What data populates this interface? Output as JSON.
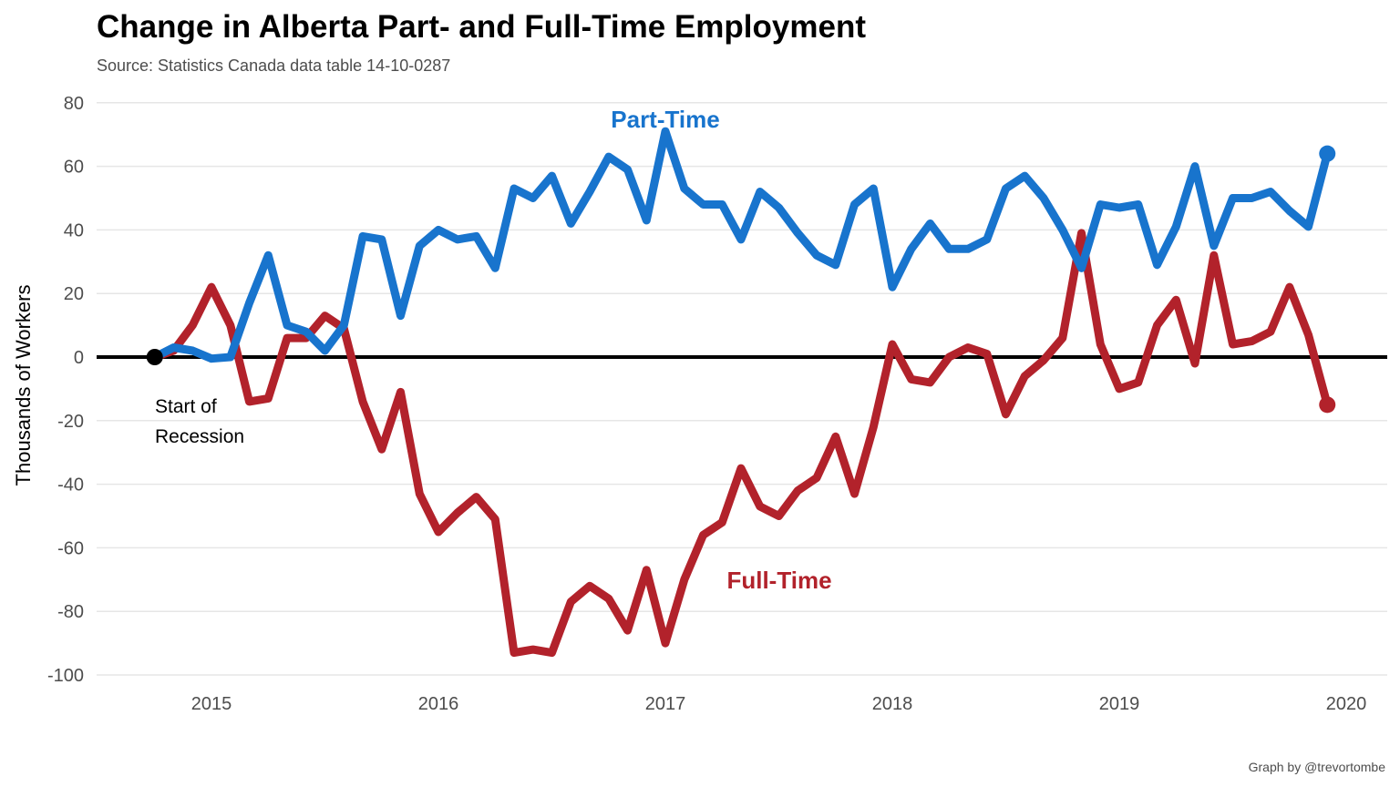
{
  "title": "Change in Alberta Part- and Full-Time Employment",
  "subtitle": "Source: Statistics Canada data table 14-10-0287",
  "caption": "Graph by @trevortombe",
  "annotations": {
    "start_line1": "Start of",
    "start_line2": "Recession"
  },
  "colors": {
    "part_time": "#1874cd",
    "full_time": "#b2222b",
    "zero_line": "#000000",
    "grid": "#e6e6e6"
  },
  "chart_data": {
    "type": "line",
    "ylabel": "Thousands of Workers",
    "xlabel": "",
    "ylim": [
      -100,
      80
    ],
    "yticks": [
      80,
      60,
      40,
      20,
      0,
      -20,
      -40,
      -60,
      -80,
      -100
    ],
    "xticks": [
      "2015",
      "2016",
      "2017",
      "2018",
      "2019",
      "2020"
    ],
    "x_start": "2014-10",
    "x_end": "2019-12",
    "grid": true,
    "legend": "none",
    "series": [
      {
        "name": "Part-Time",
        "values": [
          0,
          3,
          2,
          -0.5,
          0,
          17,
          32,
          10,
          8,
          2,
          10,
          38,
          37,
          13,
          35,
          40,
          37,
          38,
          28,
          53,
          50,
          57,
          42,
          52,
          63,
          59,
          43,
          71,
          53,
          48,
          48,
          37,
          52,
          47,
          39,
          32,
          29,
          48,
          53,
          22,
          34,
          42,
          34,
          34,
          37,
          53,
          57,
          50,
          40,
          28,
          48,
          47,
          48,
          29,
          41,
          60,
          35,
          50,
          50,
          52,
          46,
          41,
          64
        ]
      },
      {
        "name": "Full-Time",
        "values": [
          0,
          2,
          10,
          22,
          10,
          -14,
          -13,
          6,
          6,
          13,
          9,
          -14,
          -29,
          -11,
          -43,
          -55,
          -49,
          -44,
          -51,
          -93,
          -92,
          -93,
          -77,
          -72,
          -76,
          -86,
          -67,
          -90,
          -70,
          -56,
          -52,
          -35,
          -47,
          -50,
          -42,
          -38,
          -25,
          -43,
          -22,
          4,
          -7,
          -8,
          0,
          3,
          1,
          -18,
          -6,
          -1,
          6,
          39,
          4,
          -10,
          -8,
          10,
          18,
          -2,
          32,
          4,
          5,
          8,
          22,
          7,
          -15
        ]
      }
    ]
  }
}
